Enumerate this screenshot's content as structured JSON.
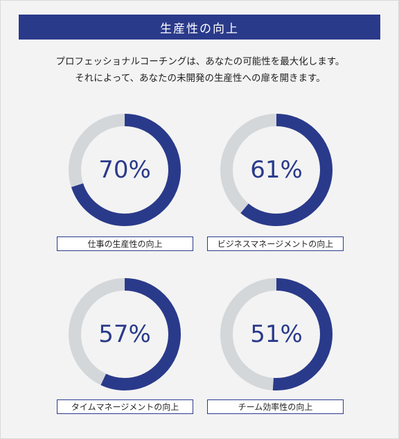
{
  "header": {
    "title": "生産性の向上"
  },
  "intro": {
    "line1": "プロフェッショナルコーチングは、あなたの可能性を最大化します。",
    "line2": "それによって、あなたの未開発の生産性への扉を開きます。"
  },
  "colors": {
    "accent": "#2a3a8a",
    "track": "#d3d7da"
  },
  "stats": [
    {
      "percent": 70,
      "value": "70%",
      "label": "仕事の生産性の向上"
    },
    {
      "percent": 61,
      "value": "61%",
      "label": "ビジネスマネージメントの向上"
    },
    {
      "percent": 57,
      "value": "57%",
      "label": "タイムマネージメントの向上"
    },
    {
      "percent": 51,
      "value": "51%",
      "label": "チーム効率性の向上"
    }
  ]
}
